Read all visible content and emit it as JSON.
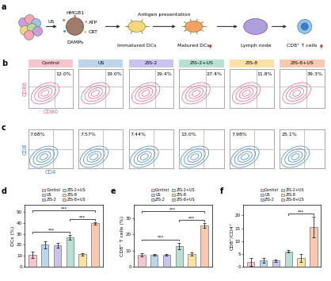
{
  "panel_labels": [
    "a",
    "b",
    "c",
    "d",
    "e",
    "f"
  ],
  "schematic": {
    "stimulus": "US",
    "signals": [
      "HMGB1",
      "ATP",
      "CRT"
    ],
    "damps": "DAMPs",
    "step": "Antigen presentation",
    "stages": [
      "Immatured DCs",
      "Matured DCs",
      "Lymph node",
      "CD8⁺ T cells"
    ]
  },
  "flow_dc": {
    "x_label": "CD80",
    "y_label": "CD86",
    "groups": [
      "Control",
      "US",
      "ZIS-2",
      "ZIS-2+US",
      "ZIS-8",
      "ZIS-8+US"
    ],
    "colors": [
      "#f6c6cf",
      "#bcd5ea",
      "#c9c5ee",
      "#b9e0d5",
      "#fbe1a6",
      "#f9c8b0"
    ],
    "percentages": [
      "12.0%",
      "19.0%",
      "19.4%",
      "27.4%",
      "11.8%",
      "39.3%"
    ]
  },
  "flow_t": {
    "x_label": "CD4",
    "y_label": "CD8",
    "percentages": [
      "7.68%",
      "7.57%",
      "7.44%",
      "13.0%",
      "7.98%",
      "25.1%"
    ]
  },
  "chart_data": [
    {
      "type": "bar",
      "y_label": "DCs (%)",
      "categories": [
        "Control",
        "US",
        "ZIS-2",
        "ZIS-2+US",
        "ZIS-8",
        "ZIS-8+US"
      ],
      "colors": [
        "#f6c6cf",
        "#bcd5ea",
        "#c9c5ee",
        "#b9e0d5",
        "#fbe1a6",
        "#f9c8b0"
      ],
      "values": [
        11,
        20,
        19.5,
        27,
        11.5,
        39.5
      ],
      "errors": [
        3,
        3,
        2,
        2,
        1,
        1
      ],
      "ylim": [
        0,
        56
      ],
      "yticks": [
        0,
        10,
        20,
        30,
        40,
        50
      ],
      "tick_labels": "y",
      "legend": "top",
      "significance": [
        {
          "from": "Control",
          "to": "ZIS-2+US",
          "label": "***"
        },
        {
          "from": "ZIS-2+US",
          "to": "ZIS-8+US",
          "label": "***"
        },
        {
          "from": "Control",
          "to": "ZIS-8+US",
          "label": "***"
        }
      ]
    },
    {
      "type": "bar",
      "y_label": "CD8⁺ T cells (%)",
      "categories": [
        "Control",
        "US",
        "ZIS-2",
        "ZIS-2+US",
        "ZIS-8",
        "ZIS-8+US"
      ],
      "colors": [
        "#f6c6cf",
        "#bcd5ea",
        "#c9c5ee",
        "#b9e0d5",
        "#fbe1a6",
        "#f9c8b0"
      ],
      "values": [
        7.5,
        7.5,
        7.5,
        13,
        8,
        25.5
      ],
      "errors": [
        1,
        0.5,
        0.5,
        2,
        1,
        1.5
      ],
      "ylim": [
        0,
        38
      ],
      "yticks": [
        0,
        10,
        20,
        30
      ],
      "tick_labels": "y",
      "legend": "top",
      "significance": [
        {
          "from": "Control",
          "to": "ZIS-2+US",
          "label": "***"
        },
        {
          "from": "ZIS-2+US",
          "to": "ZIS-8+US",
          "label": "***"
        },
        {
          "from": "Control",
          "to": "ZIS-8+US",
          "label": "***"
        }
      ]
    },
    {
      "type": "bar",
      "y_label": "CD8⁺/CD4⁺",
      "categories": [
        "Control",
        "US",
        "ZIS-2",
        "ZIS-2+US",
        "ZIS-8",
        "ZIS-8+US"
      ],
      "colors": [
        "#f6c6cf",
        "#bcd5ea",
        "#c9c5ee",
        "#b9e0d5",
        "#fbe1a6",
        "#f9c8b0"
      ],
      "values": [
        2,
        2.5,
        2.5,
        6,
        3.5,
        15.5
      ],
      "errors": [
        1.5,
        1,
        0.5,
        0.5,
        1.5,
        4
      ],
      "ylim": [
        0,
        24
      ],
      "yticks": [
        0,
        5,
        10,
        15,
        20
      ],
      "tick_labels": "y",
      "legend": "top",
      "significance": [
        {
          "from": "ZIS-2+US",
          "to": "ZIS-8+US",
          "label": "***"
        }
      ]
    }
  ]
}
